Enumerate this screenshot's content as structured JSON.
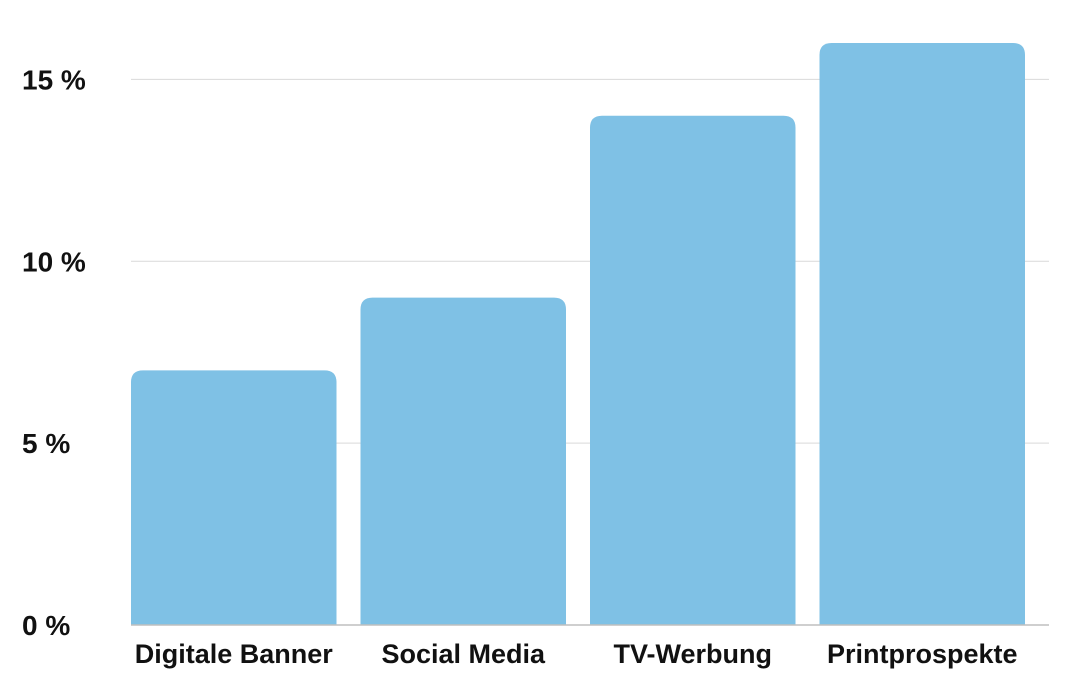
{
  "chart_data": {
    "type": "bar",
    "title": "",
    "xlabel": "",
    "ylabel": "",
    "categories": [
      "Digitale Banner",
      "Social Media",
      "TV-Werbung",
      "Printprospekte"
    ],
    "values": [
      7,
      9,
      14,
      16
    ],
    "ylim": [
      0,
      16
    ],
    "yticks": [
      0,
      5,
      10,
      15
    ],
    "ytick_labels": [
      "0 %",
      "5 %",
      "10 %",
      "15 %"
    ],
    "grid": true,
    "legend": "none",
    "bar_color": "#7fc1e5",
    "grid_color": "#d9d9d9",
    "text_color": "#111111"
  }
}
